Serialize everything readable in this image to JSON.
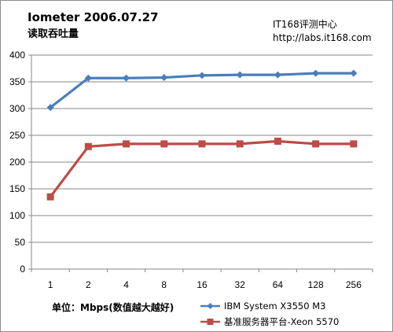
{
  "header": {
    "title": "Iometer  2006.07.27",
    "subtitle": "读取吞吐量",
    "brand_line1": "IT168评测中心",
    "brand_line2": "http://labs.it168.com"
  },
  "unit_label": "单位：Mbps(数值越大越好)",
  "colors": {
    "series1": "#4a7ebb",
    "series2": "#be4b48",
    "grid": "#878787",
    "axis": "#878787"
  },
  "chart_data": {
    "type": "line",
    "title": "Iometer  2006.07.27",
    "subtitle": "读取吞吐量",
    "categories": [
      "1",
      "2",
      "4",
      "8",
      "16",
      "32",
      "64",
      "128",
      "256"
    ],
    "ylim": [
      0,
      400
    ],
    "yticks": [
      0,
      50,
      100,
      150,
      200,
      250,
      300,
      350,
      400
    ],
    "grid": true,
    "legend_position": "bottom-right",
    "series": [
      {
        "name": "IBM System X3550 M3",
        "marker": "diamond",
        "values": [
          302,
          357,
          357,
          358,
          362,
          363,
          363,
          366,
          366
        ]
      },
      {
        "name": "基准服务器平台-Xeon 5570",
        "marker": "square",
        "values": [
          135,
          229,
          234,
          234,
          234,
          234,
          239,
          234,
          234
        ]
      }
    ]
  }
}
